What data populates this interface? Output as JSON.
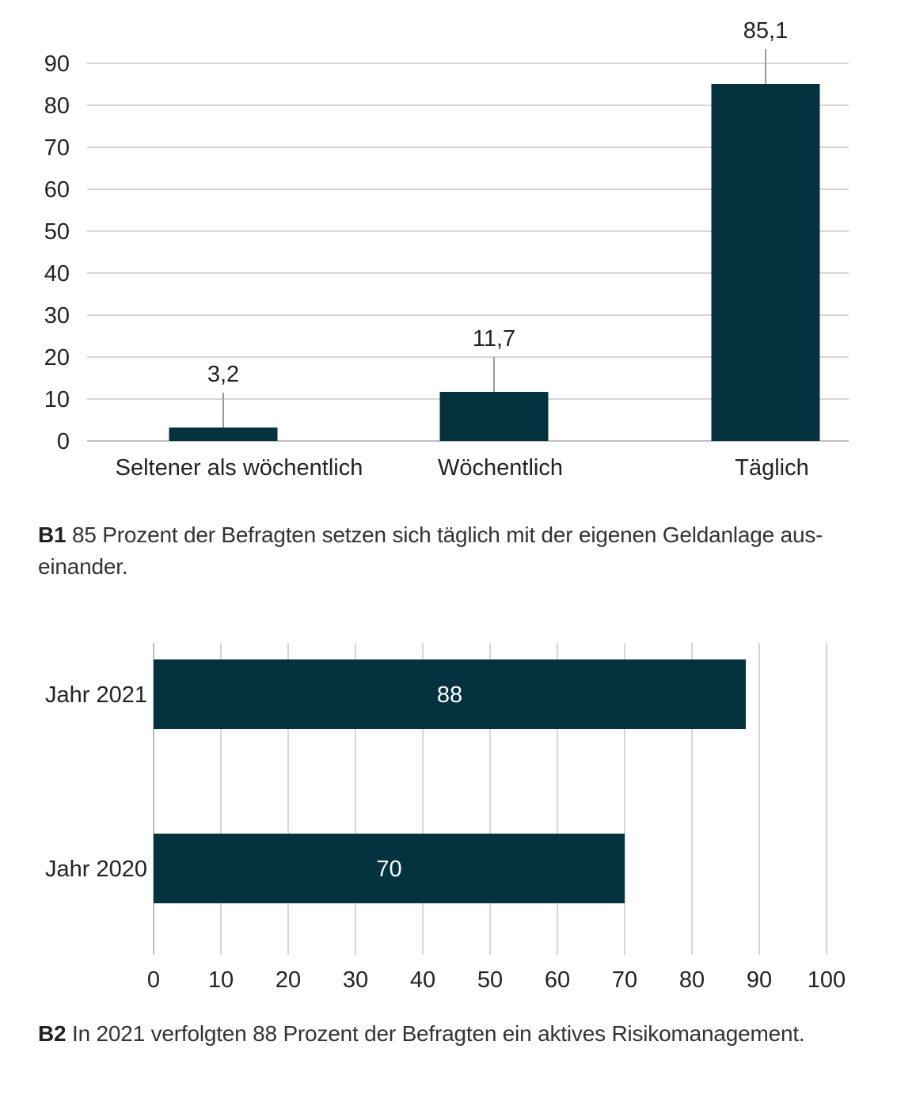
{
  "chart_data": [
    {
      "type": "bar",
      "categories": [
        "Seltener als wöchentlich",
        "Wöchentlich",
        "Täglich"
      ],
      "values": [
        3.2,
        11.7,
        85.1
      ],
      "value_labels": [
        "3,2",
        "11,7",
        "85,1"
      ],
      "ylim": [
        0,
        90
      ],
      "yticks": [
        0,
        10,
        20,
        30,
        40,
        50,
        60,
        70,
        80,
        90
      ],
      "grid": true,
      "bar_color": "#04323f"
    },
    {
      "type": "bar",
      "orientation": "horizontal",
      "categories": [
        "Jahr 2021",
        "Jahr 2020"
      ],
      "values": [
        88,
        70
      ],
      "value_labels": [
        "88",
        "70"
      ],
      "xlim": [
        0,
        100
      ],
      "xticks": [
        0,
        10,
        20,
        30,
        40,
        50,
        60,
        70,
        80,
        90,
        100
      ],
      "grid": true,
      "bar_color": "#04323f"
    }
  ],
  "captions": {
    "b1_tag": "B1",
    "b1_text": " 85 Prozent der Befragten setzen sich täglich mit der eigenen Geldanlage aus-einander.",
    "b2_tag": "B2",
    "b2_text": " In 2021 verfolgten 88 Prozent der Befragten ein aktives Risikomanagement."
  }
}
